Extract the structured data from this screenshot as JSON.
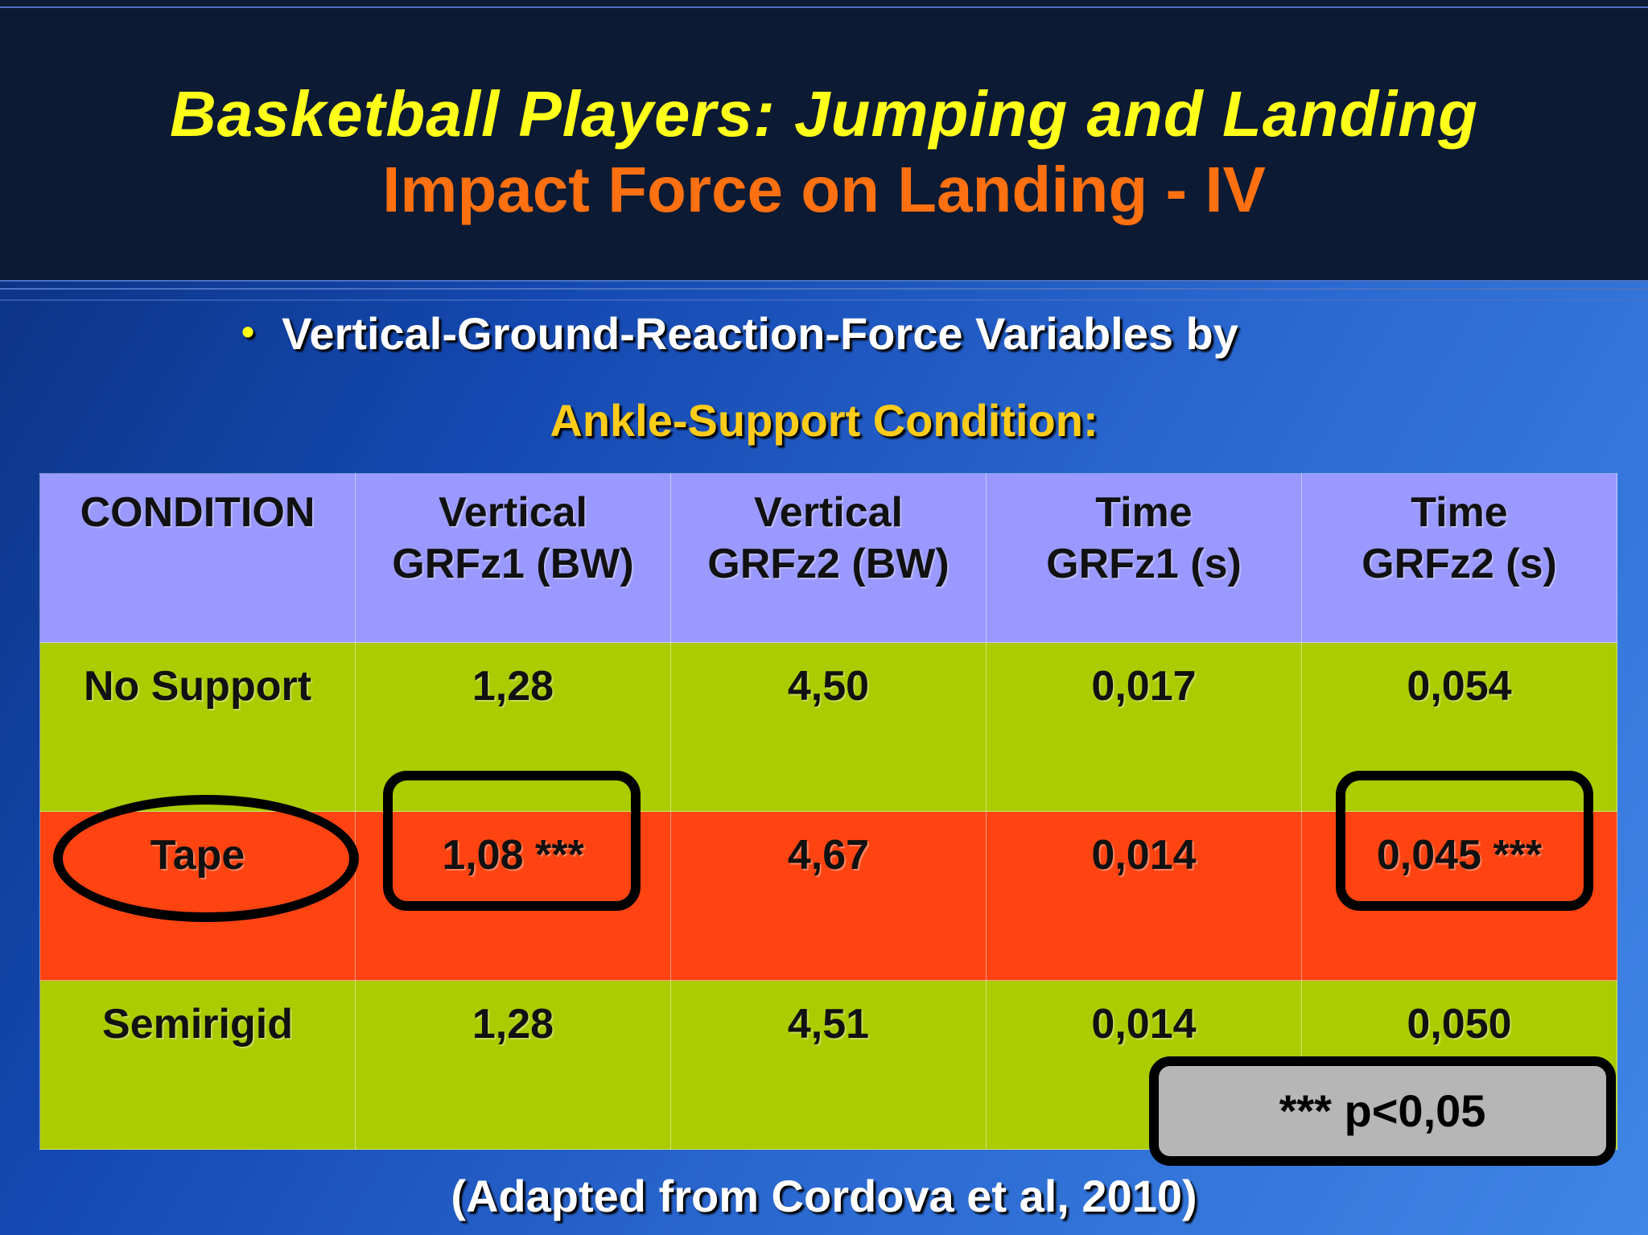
{
  "slide": {
    "title_line1": "Basketball Players:  Jumping and Landing",
    "title_line2": "Impact Force on Landing - IV",
    "bullet_text": "Vertical-Ground-Reaction-Force Variables by",
    "subheading": "Ankle-Support Condition:",
    "note": "*** p<0,05",
    "footer": "(Adapted from Cordova et al, 2010)"
  },
  "colors": {
    "title_line1": "#ffff1a",
    "title_line2": "#ff7010",
    "header_row": "#9999ff",
    "row_green": "#aacc00",
    "row_highlight": "#ff4411"
  },
  "table": {
    "headers": [
      {
        "line1": "CONDITION",
        "line2": ""
      },
      {
        "line1": "Vertical",
        "line2": "GRFz1 (BW)"
      },
      {
        "line1": "Vertical",
        "line2": "GRFz2 (BW)"
      },
      {
        "line1": "Time",
        "line2": "GRFz1 (s)"
      },
      {
        "line1": "Time",
        "line2": "GRFz2 (s)"
      }
    ],
    "rows": [
      [
        "No Support",
        "1,28",
        "4,50",
        "0,017",
        "0,054"
      ],
      [
        "Tape",
        "1,08 ***",
        "4,67",
        "0,014",
        "0,045 ***"
      ],
      [
        "Semirigid",
        "1,28",
        "4,51",
        "0,014",
        "0,050"
      ]
    ]
  }
}
